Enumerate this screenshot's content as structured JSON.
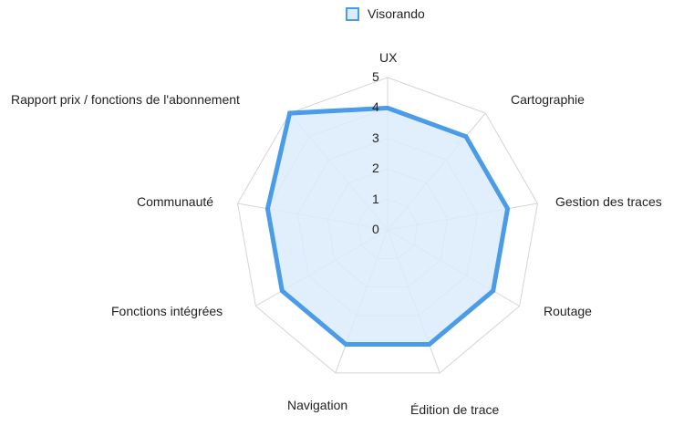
{
  "chart_data": {
    "type": "radar",
    "title": "",
    "legend": {
      "position": "top",
      "entries": [
        "Visorando"
      ]
    },
    "categories": [
      "UX",
      "Cartographie",
      "Gestion des traces",
      "Routage",
      "Édition de trace",
      "Navigation",
      "Fonctions intégrées",
      "Communauté",
      "Rapport prix / fonctions de l'abonnement"
    ],
    "series": [
      {
        "name": "Visorando",
        "values": [
          4,
          4,
          4,
          4,
          4,
          4,
          4,
          4,
          5
        ],
        "color": "#4a9be8",
        "fill": "#dcecfb"
      }
    ],
    "rlim": [
      0,
      5
    ],
    "ticks": [
      "0",
      "1",
      "2",
      "3",
      "4",
      "5"
    ],
    "grid": true
  },
  "legend": {
    "label": "Visorando"
  }
}
